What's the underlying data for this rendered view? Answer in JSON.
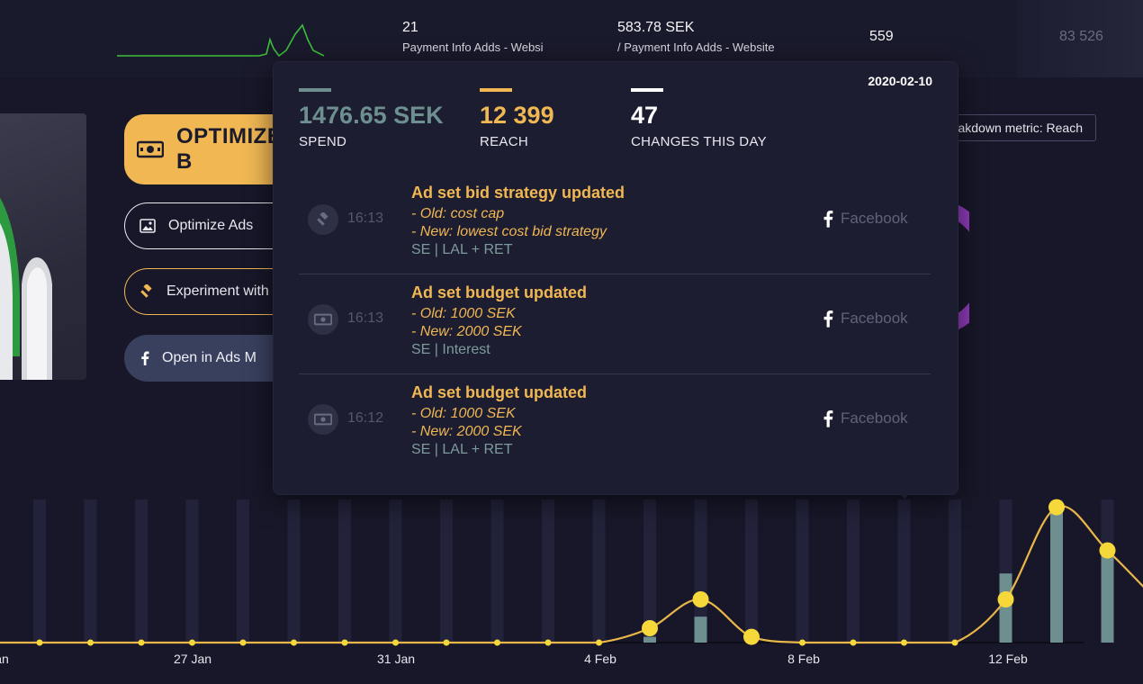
{
  "top_metrics": [
    {
      "value": "21",
      "label": "Payment Info Adds - Website"
    },
    {
      "value": "583.78 SEK",
      "label": "/ Payment Info Adds - Website"
    },
    {
      "value": "559"
    },
    {
      "value": "83 526"
    }
  ],
  "actions": {
    "optimize_label": "OPTIMIZE B",
    "optimize_ads_label": "Optimize Ads",
    "experiment_label": "Experiment with",
    "open_ads_label": "Open in Ads M"
  },
  "breakdown": {
    "label": "eakdown metric: Reach"
  },
  "tooltip": {
    "date": "2020-02-10",
    "stats": [
      {
        "value": "1476.65 SEK",
        "label": "SPEND",
        "color": "#6e8f90"
      },
      {
        "value": "12 399",
        "label": "REACH",
        "color": "#f0b753"
      },
      {
        "value": "47",
        "label": "CHANGES THIS DAY",
        "color": "#ffffff"
      }
    ],
    "events": [
      {
        "icon": "gavel-icon",
        "time": "16:13",
        "title": "Ad set bid strategy updated",
        "old": "- Old: cost cap",
        "new": "- New: lowest cost bid strategy",
        "target": "SE | LAL + RET",
        "platform": "Facebook"
      },
      {
        "icon": "money-icon",
        "time": "16:13",
        "title": "Ad set budget updated",
        "old": "- Old: 1000 SEK",
        "new": "- New: 2000 SEK",
        "target": "SE | Interest",
        "platform": "Facebook"
      },
      {
        "icon": "money-icon",
        "time": "16:12",
        "title": "Ad set budget updated",
        "old": "- Old: 1000 SEK",
        "new": "- New: 2000 SEK",
        "target": "SE | LAL + RET",
        "platform": "Facebook"
      }
    ]
  },
  "chart_data": {
    "type": "bar",
    "x_labels": [
      "an",
      "27 Jan",
      "31 Jan",
      "4 Feb",
      "8 Feb",
      "12 Feb"
    ],
    "series": [
      {
        "name": "SPEND",
        "color": "#6e8f90",
        "values": [
          0,
          0,
          0,
          0,
          0,
          0,
          0,
          0,
          0,
          0,
          0,
          0,
          0.2,
          0.9,
          0,
          0,
          0,
          0,
          0,
          2.4,
          4.8,
          3.2,
          1.3
        ]
      },
      {
        "name": "REACH",
        "color": "#f2c23c",
        "values": [
          0,
          0,
          0,
          0,
          0,
          0,
          0,
          0,
          0,
          0,
          0,
          0,
          0.5,
          1.5,
          0.2,
          0,
          0,
          0,
          0,
          1.5,
          4.7,
          3.2,
          1.4
        ]
      }
    ],
    "grid": true
  },
  "colors": {
    "background": "#171729",
    "accent": "#f0b753",
    "spend": "#6e8f90",
    "sparkline": "#3dbf3a"
  }
}
